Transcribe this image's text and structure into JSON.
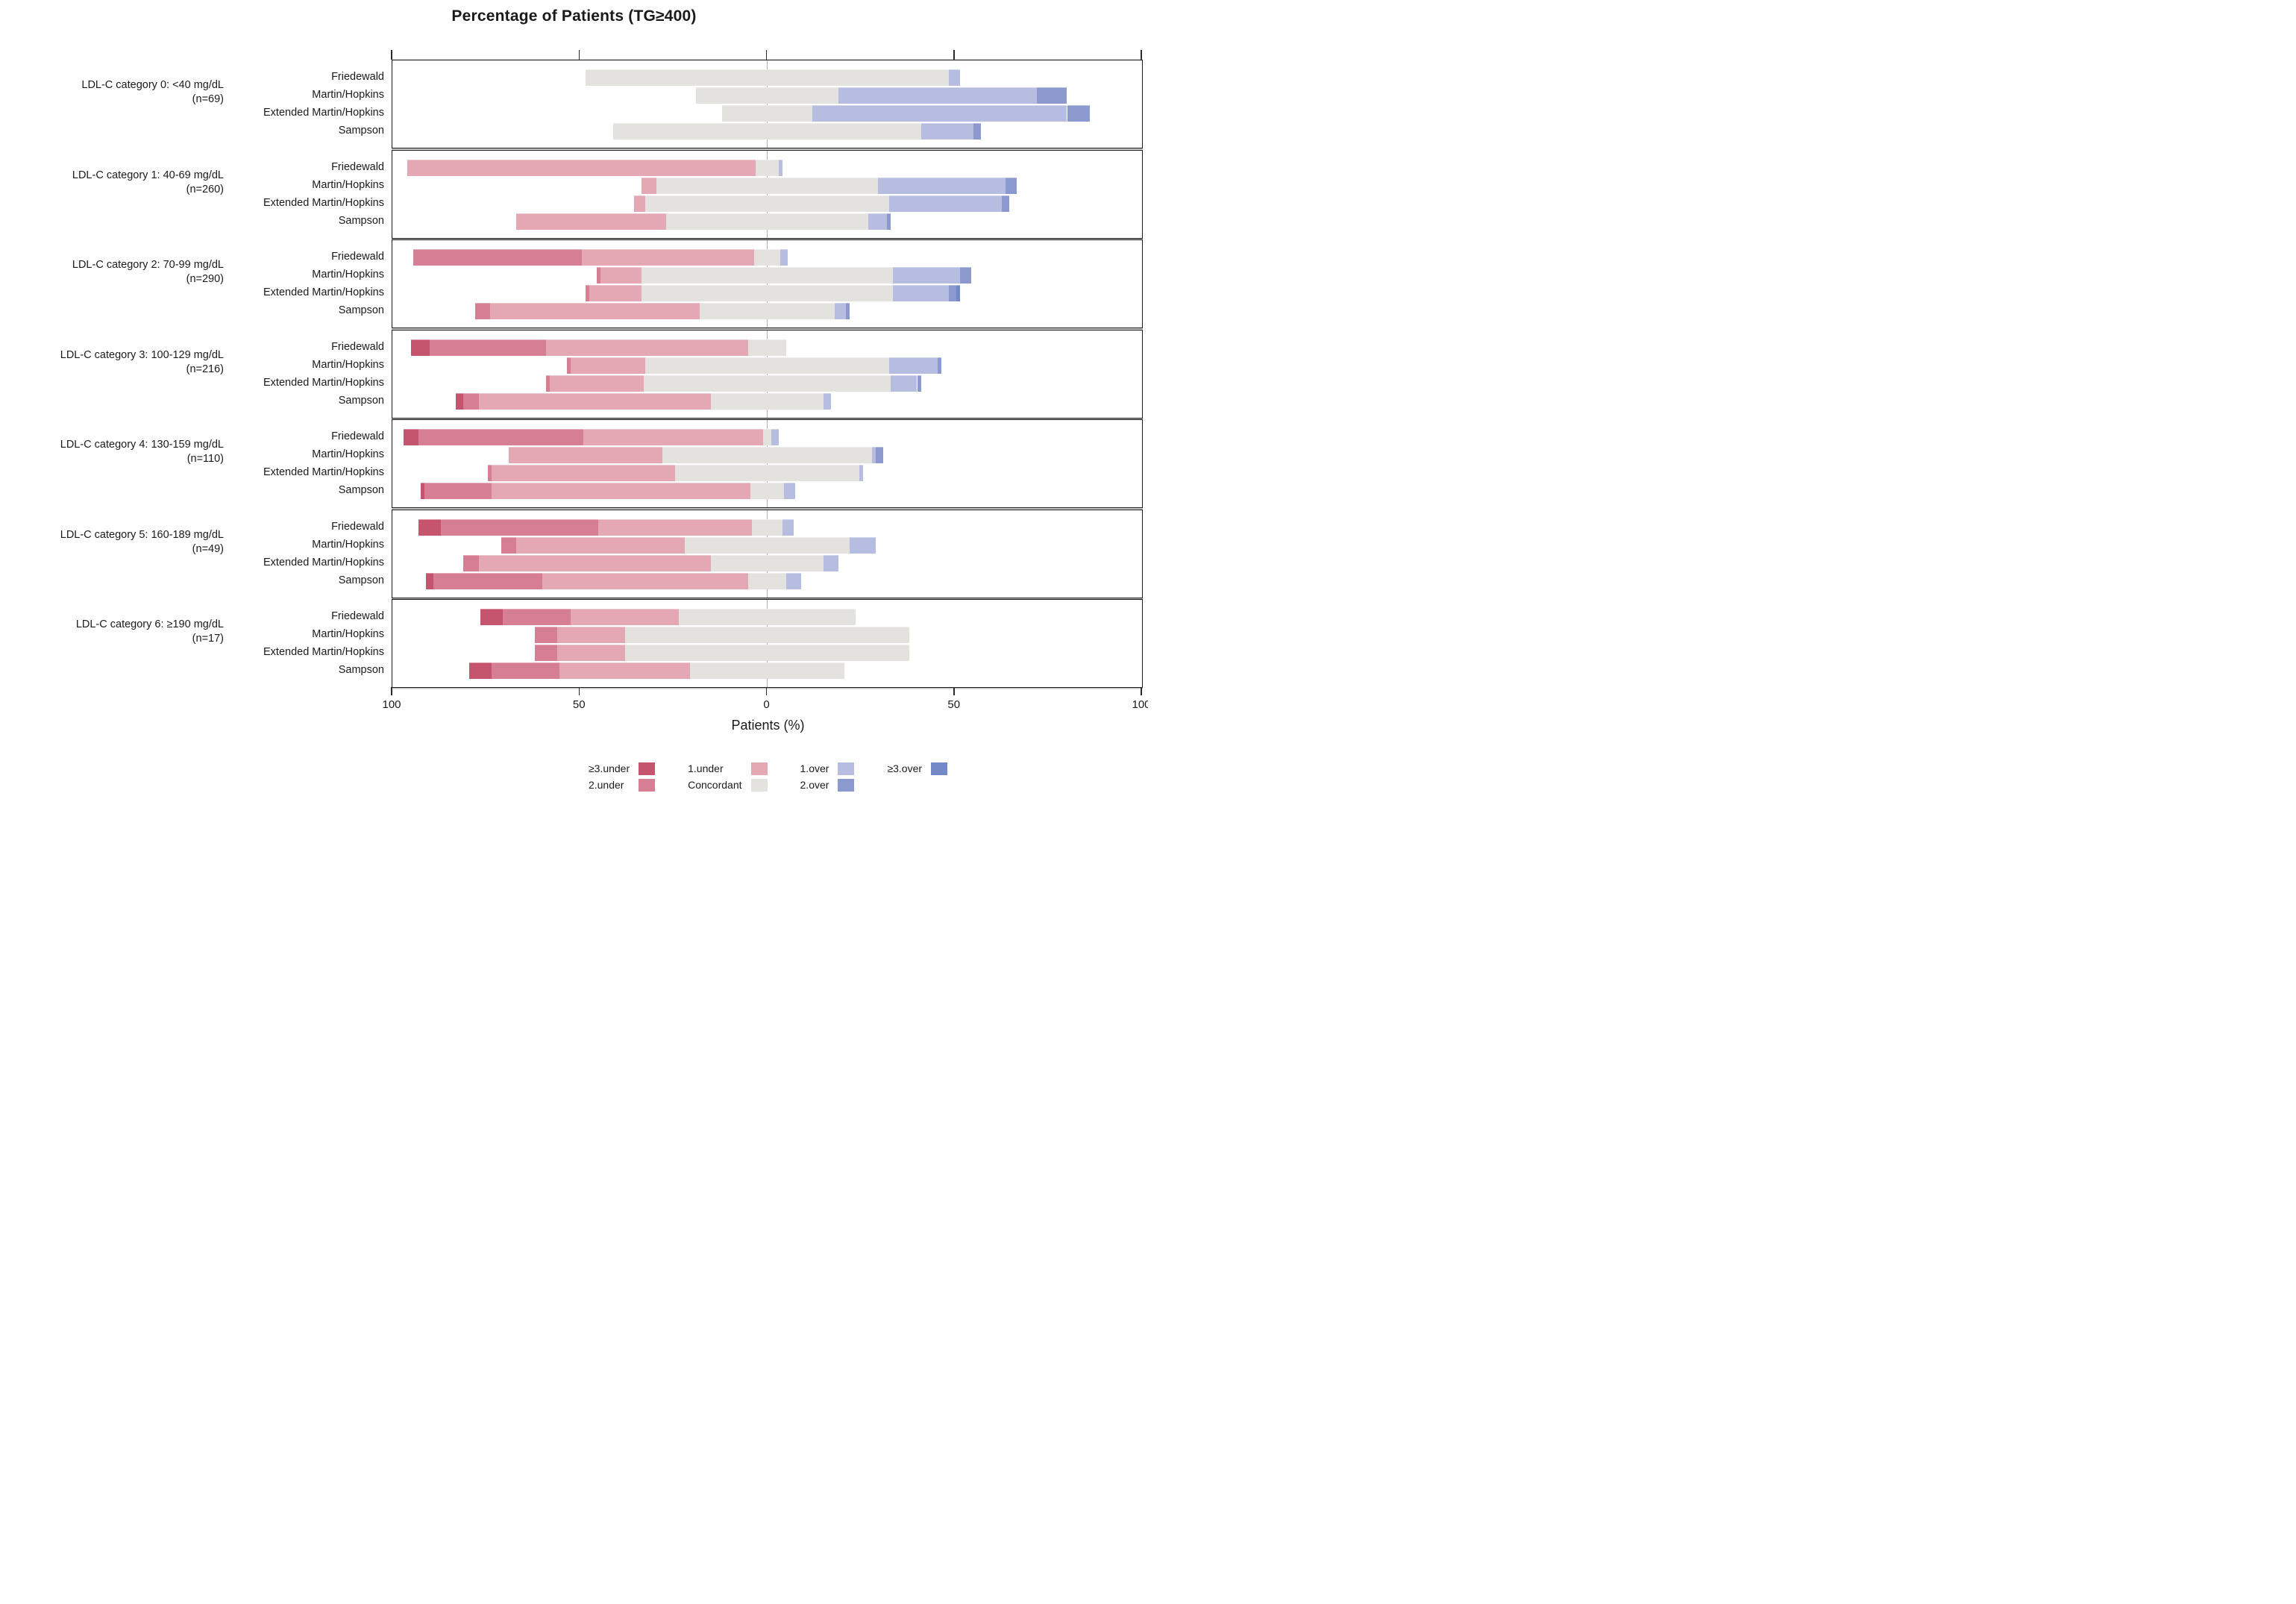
{
  "chart_data": {
    "type": "diverging_stacked_bar",
    "title": "Percentage of Patients (TG≥400)",
    "xlabel": "Patients (%)",
    "x_axis": {
      "range": [
        -100,
        100
      ],
      "ticks": [
        -100,
        -50,
        0,
        50,
        100
      ],
      "tick_labels": [
        "100",
        "50",
        "0",
        "50",
        "100"
      ],
      "zero_gridline": true
    },
    "bar_alignment": "concordant segment centered on 0; under segments extend left, over segments extend right",
    "units": "percent of patients",
    "segment_keys": [
      "ge3_under",
      "under_2",
      "under_1",
      "concordant",
      "over_1",
      "over_2",
      "ge3_over"
    ],
    "segment_labels": {
      "ge3_under": "≥3.under",
      "under_2": "2.under",
      "under_1": "1.under",
      "concordant": "Concordant",
      "over_1": "1.over",
      "over_2": "2.over",
      "ge3_over": "≥3.over"
    },
    "segment_colors": {
      "ge3_under": "#c5546f",
      "under_2": "#d67e93",
      "under_1": "#e4a7b4",
      "concordant": "#e4e2df",
      "over_1": "#b6bde1",
      "over_2": "#8c99cf",
      "ge3_over": "#7389c5"
    },
    "legend_columns": [
      [
        "ge3_under",
        "under_2"
      ],
      [
        "under_1",
        "concordant"
      ],
      [
        "over_1",
        "over_2"
      ],
      [
        "ge3_over"
      ]
    ],
    "methods": [
      "Friedewald",
      "Martin/Hopkins",
      "Extended Martin/Hopkins",
      "Sampson"
    ],
    "panels": [
      {
        "category_label": "LDL-C category 0: <40 mg/dL",
        "n_label": "(n=69)",
        "rows": [
          [
            0,
            0,
            0,
            97,
            3,
            0,
            0
          ],
          [
            0,
            0,
            0,
            38,
            53,
            8,
            0
          ],
          [
            0,
            0,
            0,
            24,
            68,
            6,
            0
          ],
          [
            0,
            0,
            0,
            82,
            14,
            2,
            0
          ]
        ]
      },
      {
        "category_label": "LDL-C category 1: 40-69 mg/dL",
        "n_label": "(n=260)",
        "rows": [
          [
            0,
            0,
            93,
            6,
            1,
            0,
            0
          ],
          [
            0,
            0,
            4,
            59,
            34,
            3,
            0
          ],
          [
            0,
            0,
            3,
            65,
            30,
            2,
            0
          ],
          [
            0,
            0,
            40,
            54,
            5,
            1,
            0
          ]
        ]
      },
      {
        "category_label": "LDL-C category 2: 70-99 mg/dL",
        "n_label": "(n=290)",
        "rows": [
          [
            0,
            45,
            46,
            7,
            2,
            0,
            0
          ],
          [
            0,
            1,
            11,
            67,
            18,
            3,
            0
          ],
          [
            0,
            1,
            14,
            67,
            15,
            2,
            1
          ],
          [
            0,
            4,
            56,
            36,
            3,
            1,
            0
          ]
        ]
      },
      {
        "category_label": "LDL-C category 3: 100-129 mg/dL",
        "n_label": "(n=216)",
        "rows": [
          [
            5,
            31,
            54,
            10,
            0,
            0,
            0
          ],
          [
            0,
            1,
            20,
            65,
            13,
            1,
            0
          ],
          [
            0,
            1,
            25,
            66,
            7,
            1,
            0
          ],
          [
            2,
            4,
            62,
            30,
            2,
            0,
            0
          ]
        ]
      },
      {
        "category_label": "LDL-C category 4: 130-159 mg/dL",
        "n_label": "(n=110)",
        "rows": [
          [
            4,
            44,
            48,
            2,
            2,
            0,
            0
          ],
          [
            0,
            0,
            41,
            56,
            1,
            2,
            0
          ],
          [
            0,
            1,
            49,
            49,
            1,
            0,
            0
          ],
          [
            1,
            18,
            69,
            9,
            3,
            0,
            0
          ]
        ]
      },
      {
        "category_label": "LDL-C category 5: 160-189 mg/dL",
        "n_label": "(n=49)",
        "rows": [
          [
            6,
            42,
            41,
            8,
            3,
            0,
            0
          ],
          [
            0,
            4,
            45,
            44,
            7,
            0,
            0
          ],
          [
            0,
            4,
            62,
            30,
            4,
            0,
            0
          ],
          [
            2,
            29,
            55,
            10,
            4,
            0,
            0
          ]
        ]
      },
      {
        "category_label": "LDL-C category 6: ≥190 mg/dL",
        "n_label": "(n=17)",
        "rows": [
          [
            6,
            18,
            29,
            47,
            0,
            0,
            0
          ],
          [
            0,
            6,
            18,
            76,
            0,
            0,
            0
          ],
          [
            0,
            6,
            18,
            76,
            0,
            0,
            0
          ],
          [
            6,
            18,
            35,
            41,
            0,
            0,
            0
          ]
        ]
      }
    ]
  }
}
